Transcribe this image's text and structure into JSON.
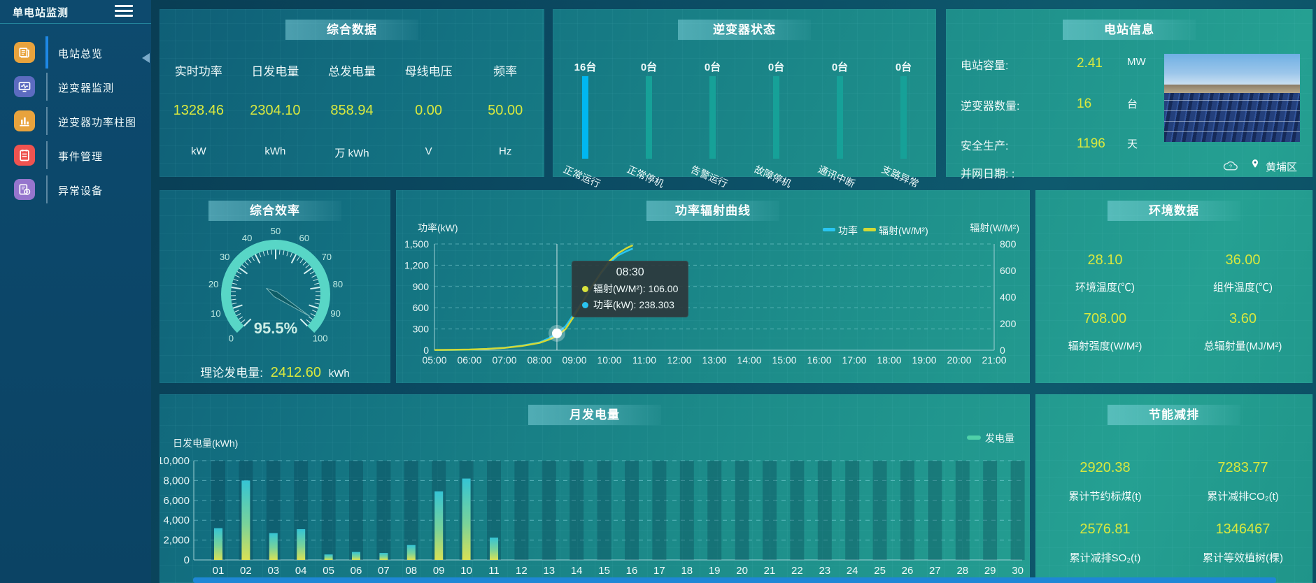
{
  "sidebar": {
    "title": "单电站监测",
    "items": [
      {
        "label": "电站总览",
        "icon": "overview-icon",
        "color": "#e8a33d",
        "active": true
      },
      {
        "label": "逆变器监测",
        "icon": "inverter-monitor-icon",
        "color": "#5c6bc0",
        "active": false
      },
      {
        "label": "逆变器功率柱图",
        "icon": "power-bars-icon",
        "color": "#e8a33d",
        "active": false
      },
      {
        "label": "事件管理",
        "icon": "event-icon",
        "color": "#ef5350",
        "active": false
      },
      {
        "label": "异常设备",
        "icon": "abnormal-device-icon",
        "color": "#9575cd",
        "active": false
      }
    ]
  },
  "summary": {
    "title": "综合数据",
    "metrics": [
      {
        "label": "实时功率",
        "value": "1328.46",
        "unit": "kW"
      },
      {
        "label": "日发电量",
        "value": "2304.10",
        "unit": "kWh"
      },
      {
        "label": "总发电量",
        "value": "858.94",
        "unit": "万 kWh"
      },
      {
        "label": "母线电压",
        "value": "0.00",
        "unit": "V"
      },
      {
        "label": "频率",
        "value": "50.00",
        "unit": "Hz"
      }
    ]
  },
  "inverter_status": {
    "title": "逆变器状态",
    "items": [
      {
        "count": "16台",
        "label": "正常运行",
        "highlight": true
      },
      {
        "count": "0台",
        "label": "正常停机",
        "highlight": false
      },
      {
        "count": "0台",
        "label": "告警运行",
        "highlight": false
      },
      {
        "count": "0台",
        "label": "故障停机",
        "highlight": false
      },
      {
        "count": "0台",
        "label": "通讯中断",
        "highlight": false
      },
      {
        "count": "0台",
        "label": "支路异常",
        "highlight": false
      }
    ]
  },
  "station_info": {
    "title": "电站信息",
    "rows": [
      {
        "label": "电站容量:",
        "value": "2.41",
        "unit": "MW"
      },
      {
        "label": "逆变器数量:",
        "value": "16",
        "unit": "台"
      },
      {
        "label": "安全生产:",
        "value": "1196",
        "unit": "天"
      },
      {
        "label": "并网日期:  :",
        "value": "",
        "unit": ""
      }
    ],
    "location": "黄埔区"
  },
  "efficiency": {
    "title": "综合效率",
    "gauge_text": "95.5%",
    "theory_label": "理论发电量:",
    "theory_value": "2412.60",
    "theory_unit": "kWh"
  },
  "power_chart": {
    "title": "功率辐射曲线",
    "axis_left": "功率(kW)",
    "axis_right": "辐射(W/M²)",
    "legend": [
      {
        "name": "功率",
        "color": "#29c5f2"
      },
      {
        "name": "辐射(W/M²)",
        "color": "#d3d935"
      }
    ],
    "tooltip": {
      "time": "08:30",
      "rows": [
        {
          "label": "辐射(W/M²)",
          "value": "106.00",
          "color": "#d8e23c"
        },
        {
          "label": "功率(kW)",
          "value": "238.303",
          "color": "#2ac3f0"
        }
      ]
    }
  },
  "environment": {
    "title": "环境数据",
    "metrics": [
      {
        "value": "28.10",
        "label": "环境温度(℃)"
      },
      {
        "value": "36.00",
        "label": "组件温度(℃)"
      },
      {
        "value": "708.00",
        "label": "辐射强度(W/M²)"
      },
      {
        "value": "3.60",
        "label": "总辐射量(MJ/M²)"
      }
    ]
  },
  "monthly_chart": {
    "title": "月发电量",
    "ylabel": "日发电量(kWh)",
    "legend": "发电量"
  },
  "savings": {
    "title": "节能减排",
    "metrics": [
      {
        "value": "2920.38",
        "label": "累计节约标煤(t)"
      },
      {
        "value": "7283.77",
        "label": "累计减排CO₂(t)"
      },
      {
        "value": "2576.81",
        "label": "累计减排SO₂(t)"
      },
      {
        "value": "1346467",
        "label": "累计等效植树(棵)"
      }
    ]
  },
  "chart_data": [
    {
      "id": "inverter_status",
      "type": "bar",
      "categories": [
        "正常运行",
        "正常停机",
        "告警运行",
        "故障停机",
        "通讯中断",
        "支路异常"
      ],
      "values": [
        16,
        0,
        0,
        0,
        0,
        0
      ],
      "unit": "台"
    },
    {
      "id": "efficiency_gauge",
      "type": "gauge",
      "value": 95.5,
      "min": 0,
      "max": 100,
      "tick_labels": [
        "0",
        "10",
        "20",
        "30",
        "40",
        "50",
        "60",
        "70",
        "80",
        "90",
        "100"
      ]
    },
    {
      "id": "power_radiation",
      "type": "line",
      "x_hours": [
        5,
        5.5,
        6,
        6.5,
        7,
        7.5,
        8,
        8.25,
        8.5,
        8.75,
        9,
        9.25,
        9.5,
        9.75,
        10,
        10.25,
        10.5,
        10.67
      ],
      "series": [
        {
          "name": "功率",
          "axis": "left",
          "color": "#29c5f2",
          "values": [
            3,
            4,
            8,
            18,
            35,
            65,
            110,
            165,
            238.3,
            340,
            520,
            700,
            900,
            1080,
            1230,
            1340,
            1400,
            1435
          ]
        },
        {
          "name": "辐射(W/M²)",
          "axis": "right",
          "color": "#d3d935",
          "values": [
            2,
            3,
            5,
            10,
            18,
            32,
            55,
            78,
            106,
            160,
            260,
            370,
            480,
            580,
            670,
            730,
            770,
            790
          ]
        }
      ],
      "left_ylim": [
        0,
        1500
      ],
      "right_ylim": [
        0,
        800
      ],
      "left_ticks": [
        "0",
        "300",
        "600",
        "900",
        "1,200",
        "1,500"
      ],
      "right_ticks": [
        "0",
        "200",
        "400",
        "600",
        "800"
      ],
      "x_ticks": [
        "05:00",
        "06:00",
        "07:00",
        "08:00",
        "09:00",
        "10:00",
        "11:00",
        "12:00",
        "13:00",
        "14:00",
        "15:00",
        "16:00",
        "17:00",
        "18:00",
        "19:00",
        "20:00",
        "21:00"
      ],
      "crosshair_hour": 8.5
    },
    {
      "id": "monthly_energy",
      "type": "bar",
      "categories": [
        "01",
        "02",
        "03",
        "04",
        "05",
        "06",
        "07",
        "08",
        "09",
        "10",
        "11",
        "12",
        "13",
        "14",
        "15",
        "16",
        "17",
        "18",
        "19",
        "20",
        "21",
        "22",
        "23",
        "24",
        "25",
        "26",
        "27",
        "28",
        "29",
        "30"
      ],
      "values": [
        3200,
        8000,
        2700,
        3100,
        550,
        800,
        700,
        1500,
        6900,
        8200,
        2250,
        0,
        0,
        0,
        0,
        0,
        0,
        0,
        0,
        0,
        0,
        0,
        0,
        0,
        0,
        0,
        0,
        0,
        0,
        0
      ],
      "ylim": [
        0,
        10000
      ],
      "y_ticks": [
        "0",
        "2,000",
        "4,000",
        "6,000",
        "8,000",
        "10,000"
      ]
    }
  ]
}
